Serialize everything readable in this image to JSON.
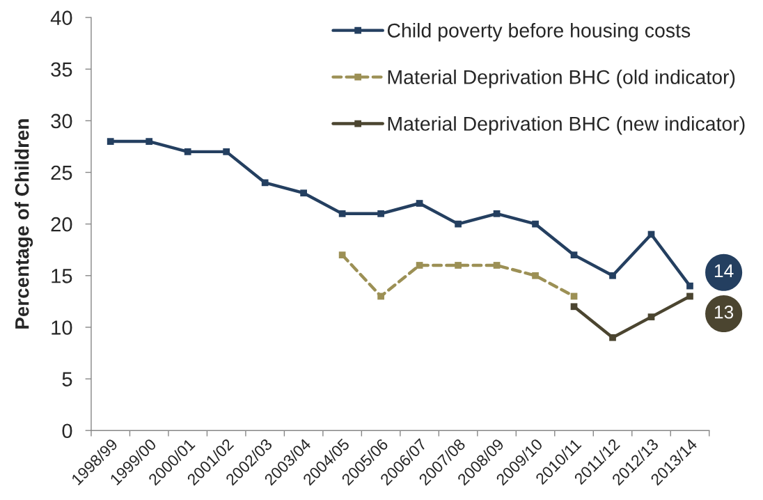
{
  "chart_data": {
    "type": "line",
    "ylabel": "Percentage of Children",
    "categories": [
      "1998/99",
      "1999/00",
      "2000/01",
      "2001/02",
      "2002/03",
      "2003/04",
      "2004/05",
      "2005/06",
      "2006/07",
      "2007/08",
      "2008/09",
      "2009/10",
      "2010/11",
      "2011/12",
      "2012/13",
      "2013/14"
    ],
    "ylim": [
      0,
      40
    ],
    "yticks": [
      0,
      5,
      10,
      15,
      20,
      25,
      30,
      35,
      40
    ],
    "grid": false,
    "legend": "top right",
    "marker": "square",
    "line_style": "solid",
    "series": [
      {
        "name": "Child poverty before housing costs",
        "color": "#243f60",
        "values": [
          28,
          28,
          27,
          27,
          24,
          23,
          21,
          21,
          22,
          20,
          21,
          20,
          17,
          15,
          19,
          14
        ],
        "value_labels": [
          null,
          null,
          null,
          null,
          null,
          null,
          null,
          null,
          null,
          null,
          null,
          null,
          null,
          null,
          null,
          "14"
        ]
      },
      {
        "name": "Material Deprivation BHC (old indicator)",
        "color": "#9c9055",
        "line_style": "dashed",
        "values": [
          null,
          null,
          null,
          null,
          null,
          null,
          17,
          13,
          16,
          16,
          16,
          15,
          13,
          null,
          null,
          null
        ]
      },
      {
        "name": "Material Deprivation BHC (new indicator)",
        "color": "#4b4530",
        "values": [
          null,
          null,
          null,
          null,
          null,
          null,
          null,
          null,
          null,
          null,
          null,
          null,
          12,
          9,
          11,
          13
        ],
        "value_labels": [
          null,
          null,
          null,
          null,
          null,
          null,
          null,
          null,
          null,
          null,
          null,
          null,
          null,
          null,
          null,
          "13"
        ]
      }
    ]
  }
}
